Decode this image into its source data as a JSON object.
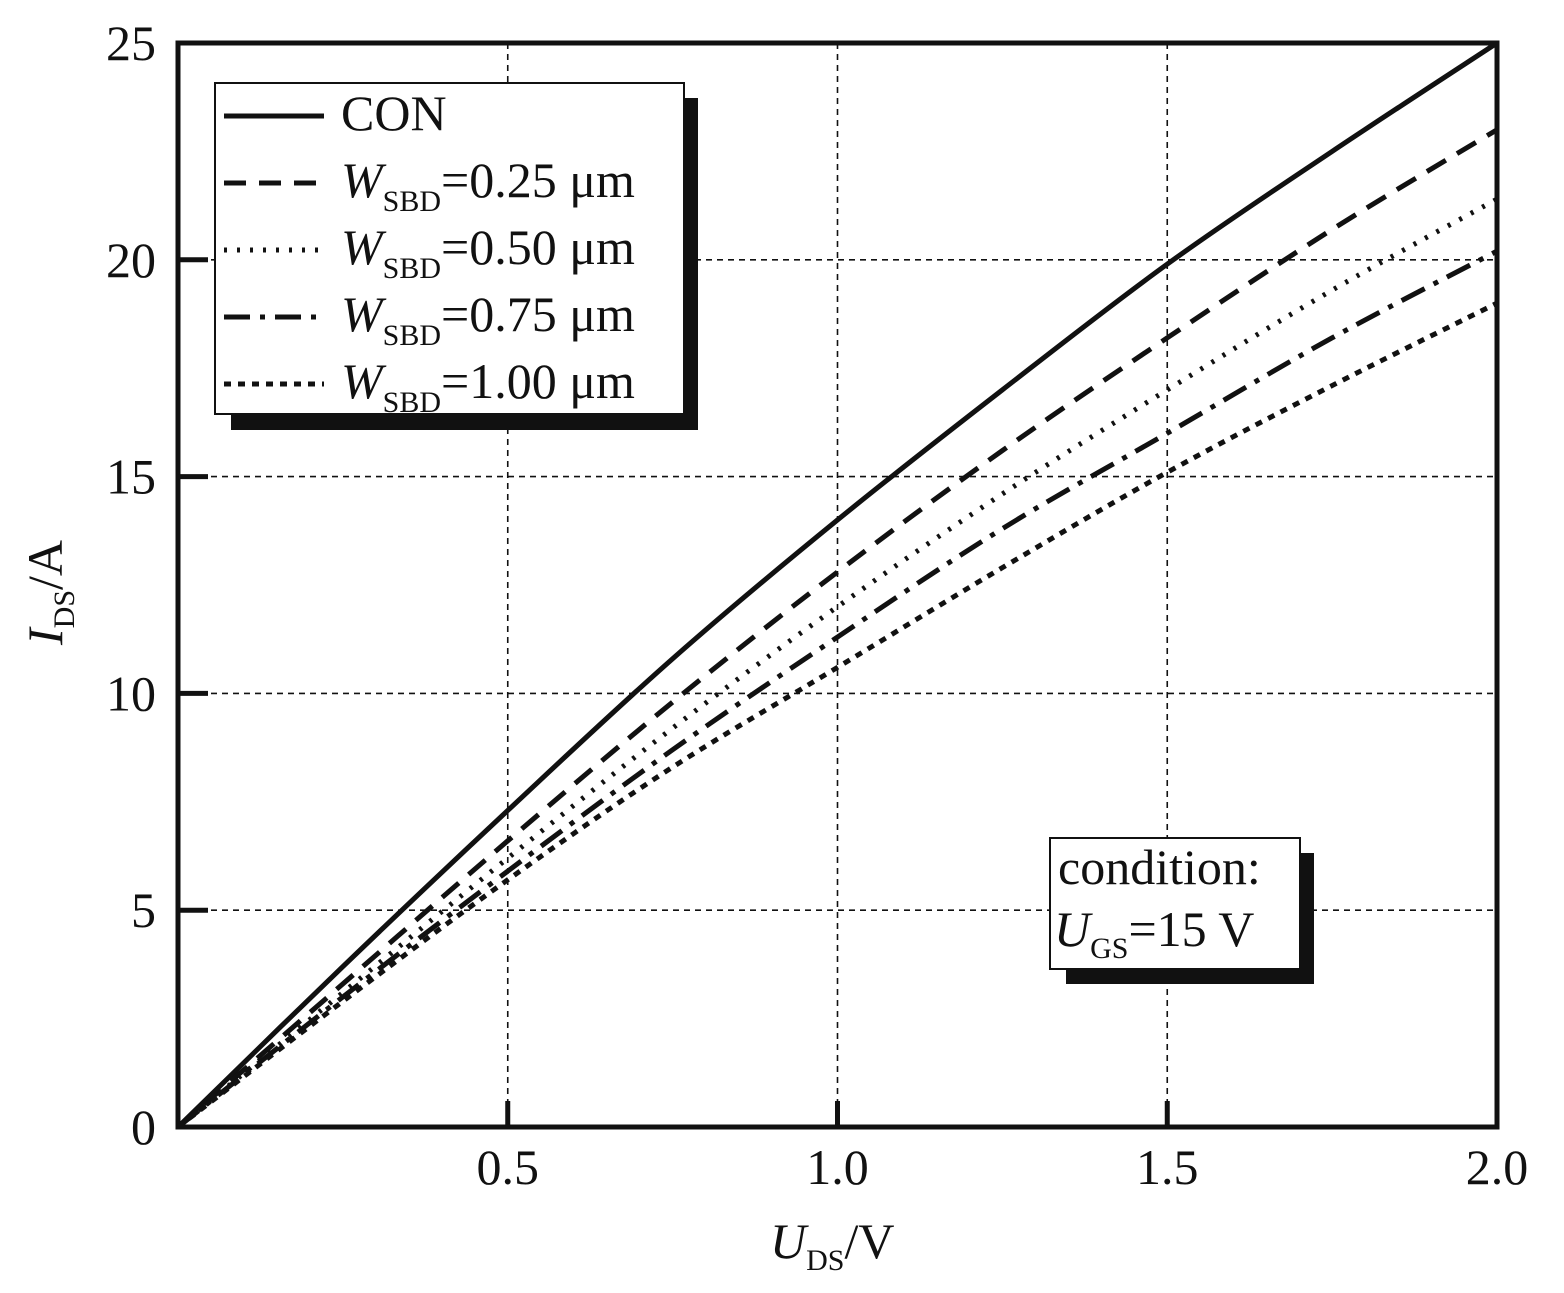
{
  "chart_data": {
    "type": "line",
    "title": "",
    "xlabel": {
      "main": "U",
      "sub": "DS",
      "unit": "/V"
    },
    "ylabel": {
      "main": "I",
      "sub": "DS",
      "unit": "/A"
    },
    "xlim": [
      0,
      2.0
    ],
    "ylim": [
      0,
      25
    ],
    "x_ticks": [
      0.5,
      1.0,
      1.5,
      2.0
    ],
    "x_tick_labels": [
      "0.5",
      "1.0",
      "1.5",
      "2.0"
    ],
    "y_ticks": [
      0,
      5,
      10,
      15,
      20,
      25
    ],
    "y_tick_labels": [
      "0",
      "5",
      "10",
      "15",
      "20",
      "25"
    ],
    "grid": true,
    "legend_position": "top-left",
    "series": [
      {
        "name": "CON",
        "style": "solid",
        "x": [
          0,
          0.25,
          0.5,
          0.75,
          1.0,
          1.25,
          1.5,
          1.75,
          2.0
        ],
        "y": [
          0,
          3.7,
          7.3,
          10.8,
          14.0,
          17.0,
          19.9,
          22.5,
          25.0
        ]
      },
      {
        "name": "W_SBD=0.25 μm",
        "label_main": "W",
        "label_sub": "SBD",
        "label_rest": "=0.25 μm",
        "style": "dash",
        "x": [
          0,
          0.25,
          0.5,
          0.75,
          1.0,
          1.25,
          1.5,
          1.75,
          2.0
        ],
        "y": [
          0,
          3.3,
          6.6,
          9.8,
          12.8,
          15.6,
          18.2,
          20.7,
          23.0
        ]
      },
      {
        "name": "W_SBD=0.50 μm",
        "label_main": "W",
        "label_sub": "SBD",
        "label_rest": "=0.50 μm",
        "style": "dot",
        "x": [
          0,
          0.25,
          0.5,
          0.75,
          1.0,
          1.25,
          1.5,
          1.75,
          2.0
        ],
        "y": [
          0,
          3.1,
          6.2,
          9.2,
          12.0,
          14.6,
          17.0,
          19.3,
          21.4
        ]
      },
      {
        "name": "W_SBD=0.75 μm",
        "label_main": "W",
        "label_sub": "SBD",
        "label_rest": "=0.75 μm",
        "style": "dashdot",
        "x": [
          0,
          0.25,
          0.5,
          0.75,
          1.0,
          1.25,
          1.5,
          1.75,
          2.0
        ],
        "y": [
          0,
          3.0,
          5.9,
          8.7,
          11.3,
          13.8,
          16.0,
          18.2,
          20.2
        ]
      },
      {
        "name": "W_SBD=1.00 μm",
        "label_main": "W",
        "label_sub": "SBD",
        "label_rest": "=1.00 μm",
        "style": "shortdot",
        "x": [
          0,
          0.25,
          0.5,
          0.75,
          1.0,
          1.25,
          1.5,
          1.75,
          2.0
        ],
        "y": [
          0,
          2.9,
          5.7,
          8.3,
          10.6,
          12.9,
          15.1,
          17.1,
          19.0
        ]
      }
    ],
    "annotation": {
      "line1": "condition:",
      "line2_main": "U",
      "line2_sub": "GS",
      "line2_rest": "=15 V"
    }
  }
}
